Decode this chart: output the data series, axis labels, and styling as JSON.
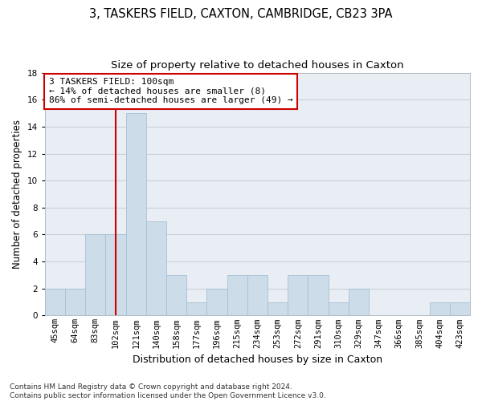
{
  "title": "3, TASKERS FIELD, CAXTON, CAMBRIDGE, CB23 3PA",
  "subtitle": "Size of property relative to detached houses in Caxton",
  "xlabel": "Distribution of detached houses by size in Caxton",
  "ylabel": "Number of detached properties",
  "bar_labels": [
    "45sqm",
    "64sqm",
    "83sqm",
    "102sqm",
    "121sqm",
    "140sqm",
    "158sqm",
    "177sqm",
    "196sqm",
    "215sqm",
    "234sqm",
    "253sqm",
    "272sqm",
    "291sqm",
    "310sqm",
    "329sqm",
    "347sqm",
    "366sqm",
    "385sqm",
    "404sqm",
    "423sqm"
  ],
  "bar_values": [
    2,
    2,
    6,
    6,
    15,
    7,
    3,
    1,
    2,
    3,
    3,
    1,
    3,
    3,
    1,
    2,
    0,
    0,
    0,
    1,
    1
  ],
  "bar_color": "#ccdce8",
  "bar_edgecolor": "#a8c0d4",
  "vline_x": 3,
  "vline_color": "#cc0000",
  "annotation_text": "3 TASKERS FIELD: 100sqm\n← 14% of detached houses are smaller (8)\n86% of semi-detached houses are larger (49) →",
  "annotation_box_color": "#cc0000",
  "ylim": [
    0,
    18
  ],
  "yticks": [
    0,
    2,
    4,
    6,
    8,
    10,
    12,
    14,
    16,
    18
  ],
  "grid_color": "#c8d0d8",
  "background_color": "#e8eef4",
  "footer_text": "Contains HM Land Registry data © Crown copyright and database right 2024.\nContains public sector information licensed under the Open Government Licence v3.0.",
  "title_fontsize": 10.5,
  "subtitle_fontsize": 9.5,
  "xlabel_fontsize": 9,
  "ylabel_fontsize": 8.5,
  "tick_fontsize": 7.5,
  "annotation_fontsize": 8,
  "footer_fontsize": 6.5
}
